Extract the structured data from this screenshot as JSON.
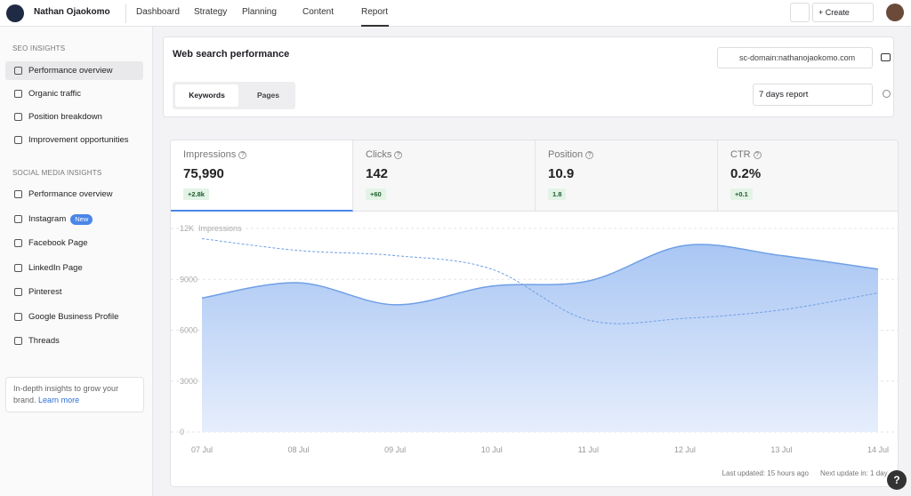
{
  "nav": {
    "user": "Nathan Ojaokomo",
    "items": [
      "Dashboard",
      "Strategy",
      "Planning",
      "Content",
      "Report"
    ],
    "create": "Create"
  },
  "sidebar": {
    "sections": [
      {
        "title": "SEO INSIGHTS",
        "items": [
          "Performance overview",
          "Organic traffic",
          "Position breakdown",
          "Improvement opportunities"
        ]
      },
      {
        "title": "SOCIAL MEDIA INSIGHTS",
        "items": [
          "Performance overview",
          "Instagram",
          "Facebook Page",
          "LinkedIn Page",
          "Pinterest",
          "Google Business Profile",
          "Threads"
        ]
      }
    ],
    "badge": "New",
    "promo": "In-depth insights to grow your brand.",
    "promo_link": "Learn more"
  },
  "header": {
    "title": "Web search performance",
    "domain": "sc-domain:nathanojaokomo.com",
    "tabs": [
      "Keywords",
      "Pages"
    ],
    "period": "7 days report"
  },
  "metrics": [
    {
      "label": "Impressions",
      "value": "75,990",
      "change": "+2.8k"
    },
    {
      "label": "Clicks",
      "value": "142",
      "change": "+60"
    },
    {
      "label": "Position",
      "value": "10.9",
      "change": "1.8"
    },
    {
      "label": "CTR",
      "value": "0.2%",
      "change": "+0.1"
    }
  ],
  "chart_data": {
    "type": "area",
    "y_label": "Impressions",
    "categories": [
      "07 Jul",
      "08 Jul",
      "09 Jul",
      "10 Jul",
      "11 Jul",
      "12 Jul",
      "13 Jul",
      "14 Jul"
    ],
    "series": [
      {
        "color": "#6f9fe6",
        "style": "solid",
        "fill": true,
        "values": [
          7900,
          8800,
          7500,
          8600,
          8900,
          11000,
          10400,
          9600
        ]
      },
      {
        "color": "#6f9fe6",
        "style": "dashed",
        "fill": false,
        "values": [
          11400,
          10700,
          10400,
          9600,
          6600,
          6700,
          7200,
          8200
        ]
      }
    ],
    "ylim": [
      0,
      12000
    ],
    "yticks": [
      0,
      3000,
      6000,
      9000,
      {
        "value": 12000,
        "label": "12K"
      }
    ],
    "grid": true
  },
  "footer": {
    "updated": "Last updated: 15 hours ago",
    "next": "Next update in: 1 day"
  }
}
